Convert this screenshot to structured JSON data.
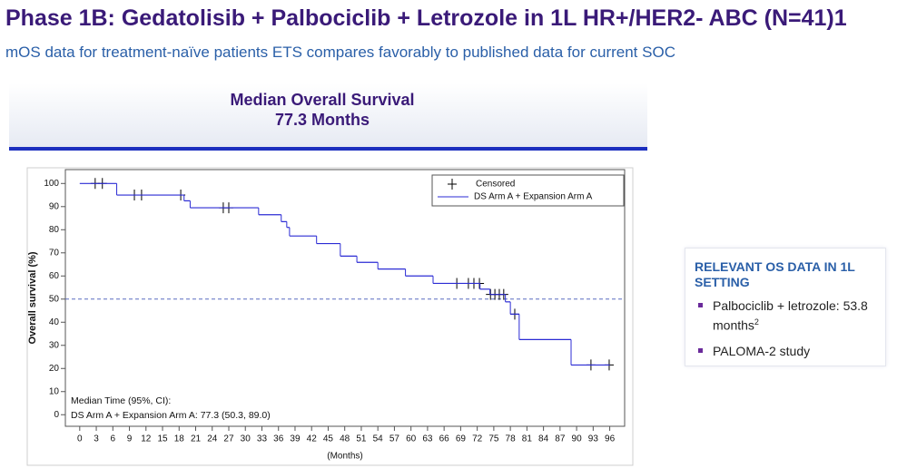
{
  "header": {
    "title": "Phase 1B: Gedatolisib + Palbociclib + Letrozole in 1L HR+/HER2- ABC (N=41)1",
    "subtitle": "mOS data for treatment-naïve patients ETS compares favorably to published data for current SOC"
  },
  "banner": {
    "line1": "Median Overall Survival",
    "line2": "77.3 Months"
  },
  "side_panel": {
    "heading": "RELEVANT OS DATA IN 1L SETTING",
    "items": [
      {
        "text": "Palbociclib + letrozole: 53.8 months",
        "sup": "2"
      },
      {
        "text": "PALOMA-2 study"
      }
    ]
  },
  "chart_data": {
    "type": "step",
    "x_label": "(Months)",
    "y_label": "Overall survival (%)",
    "xlim": [
      -2.6,
      98.7
    ],
    "ylim": [
      -5,
      106
    ],
    "xticks": [
      0,
      3,
      6,
      9,
      12,
      15,
      18,
      21,
      24,
      27,
      30,
      33,
      36,
      39,
      42,
      45,
      48,
      51,
      54,
      57,
      60,
      63,
      66,
      69,
      72,
      75,
      78,
      81,
      84,
      87,
      90,
      93,
      96
    ],
    "yticks": [
      0,
      10,
      20,
      30,
      40,
      50,
      60,
      70,
      80,
      90,
      100
    ],
    "reference_line": 50,
    "legend": "top-right",
    "annotations": [
      "Median Time (95%, CI):",
      "DS Arm A + Expansion Arm A: 77.3 (50.3, 89.0)"
    ],
    "series": [
      {
        "name": "Censored",
        "marker": "plus",
        "color": "#000000",
        "x": [
          2.8,
          4.1,
          9.9,
          11.2,
          18.3,
          26,
          27,
          68.3,
          70.4,
          71.4,
          72.4,
          74.4,
          75.2,
          76,
          76.8,
          78.8,
          92.6,
          95.9
        ],
        "values": [
          100,
          100,
          95,
          95,
          95,
          89.5,
          89.5,
          56.8,
          56.8,
          56.8,
          56.8,
          52,
          52,
          52,
          52,
          43.5,
          21.5,
          21.5
        ]
      },
      {
        "name": "DS Arm A + Expansion Arm A",
        "color": "#2b2bd4",
        "x": [
          0,
          6.7,
          18.9,
          20,
          32.4,
          36.5,
          37.5,
          38,
          42.9,
          47.2,
          50.2,
          54,
          59,
          64,
          72.5,
          74.3,
          77.1,
          78,
          79.6,
          89,
          96
        ],
        "values": [
          100,
          95,
          92.5,
          89.5,
          86.5,
          83.5,
          81,
          77.3,
          74,
          68.6,
          65.9,
          63,
          60,
          56.8,
          54.3,
          52,
          48.8,
          43.5,
          32.5,
          21.5,
          21.5
        ]
      }
    ]
  }
}
